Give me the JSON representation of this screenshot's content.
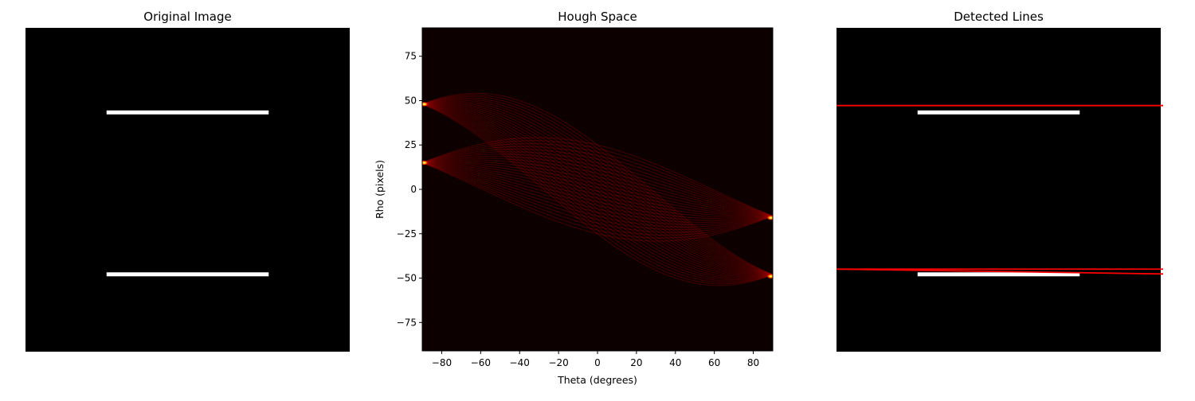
{
  "chart_data": [
    {
      "type": "image",
      "title": "Original Image",
      "image_size": [
        100,
        100
      ],
      "background": "#000000",
      "segments": [
        {
          "x0": 25,
          "x1": 75,
          "y0": 25.5,
          "y1": 26.5,
          "color": "#ffffff"
        },
        {
          "x0": 25,
          "x1": 75,
          "y0": 75.5,
          "y1": 76.5,
          "color": "#ffffff"
        }
      ]
    },
    {
      "type": "heatmap",
      "title": "Hough Space",
      "xlabel": "Theta (degrees)",
      "ylabel": "Rho (pixels)",
      "xlim": [
        -90,
        90
      ],
      "ylim": [
        -91,
        91
      ],
      "xticks": [
        -80,
        -60,
        -40,
        -20,
        0,
        20,
        40,
        60,
        80
      ],
      "yticks": [
        -75,
        -50,
        -25,
        0,
        25,
        50,
        75
      ],
      "colormap": "hot",
      "background": "#0d0000",
      "bands": [
        {
          "amplitude": 42.5,
          "x_center": 0,
          "y_center": 24,
          "y_spread": 25
        },
        {
          "amplitude": 42.5,
          "x_center": 0,
          "y_center": -26,
          "y_spread": 25
        }
      ],
      "peaks": [
        {
          "theta": -89,
          "rho": 48
        },
        {
          "theta": -89,
          "rho": 15
        },
        {
          "theta": 89,
          "rho": -16
        },
        {
          "theta": 89,
          "rho": -49
        }
      ]
    },
    {
      "type": "image",
      "title": "Detected Lines",
      "image_size": [
        100,
        100
      ],
      "background": "#000000",
      "segments": [
        {
          "x0": 25,
          "x1": 75,
          "y0": 25.5,
          "y1": 26.5,
          "color": "#ffffff"
        },
        {
          "x0": 25,
          "x1": 75,
          "y0": 75.5,
          "y1": 76.5,
          "color": "#ffffff"
        }
      ],
      "lines": [
        {
          "y_left": 24,
          "y_right": 24,
          "color": "#ff0000"
        },
        {
          "y_left": 74.5,
          "y_right": 74.5,
          "color": "#ff0000"
        },
        {
          "y_left": 74.5,
          "y_right": 76,
          "color": "#ff0000"
        }
      ]
    }
  ]
}
